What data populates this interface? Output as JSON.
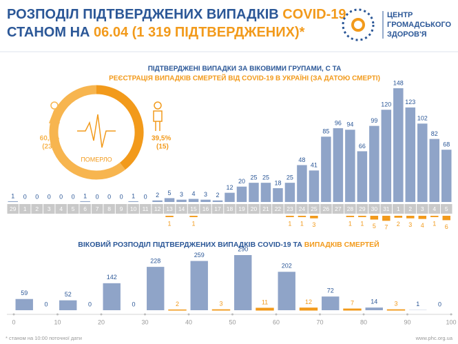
{
  "header": {
    "title_parts": [
      "РОЗПОДІЛ ПІДТВЕРДЖЕНИХ ВИПАДКІВ ",
      "COVID-19"
    ],
    "subtitle_parts": [
      "СТАНОМ НА ",
      "06.04 (1 319 ПІДТВЕРДЖЕНИХ)*"
    ],
    "logo_lines": [
      "ЦЕНТР",
      "ГРОМАДСЬКОГО",
      "ЗДОРОВ'Я"
    ]
  },
  "chart_data": [
    {
      "type": "pie",
      "center_label": "ПОМЕРЛО",
      "values": [
        60.5,
        39.5
      ],
      "value_labels": [
        "60,5%",
        "39,5%"
      ],
      "counts": [
        23,
        15
      ],
      "count_labels": [
        "(23)",
        "(15)"
      ],
      "colors": [
        "#f7b54f",
        "#f29a1b"
      ]
    },
    {
      "type": "bar",
      "title_lines": [
        "ПІДТВЕРДЖЕНІ ВИПАДКИ ЗА ВІКОВИМИ ГРУПАМИ, С ТА",
        "РЕЄСТРАЦІЯ ВИПАДКІВ СМЕРТЕЙ ВІД COVID-19 В УКРАЇНІ (ЗА ДАТОЮ СМЕРТІ)"
      ],
      "categories": [
        "29",
        "1",
        "2",
        "3",
        "4",
        "5",
        "6",
        "7",
        "8",
        "9",
        "10",
        "11",
        "12",
        "13",
        "14",
        "15",
        "16",
        "17",
        "18",
        "19",
        "20",
        "21",
        "22",
        "23",
        "24",
        "25",
        "26",
        "27",
        "28",
        "29",
        "30",
        "31",
        "1",
        "2",
        "3",
        "4",
        "5"
      ],
      "values": [
        1,
        0,
        0,
        0,
        0,
        0,
        1,
        0,
        0,
        0,
        1,
        0,
        2,
        5,
        3,
        4,
        3,
        2,
        12,
        20,
        25,
        25,
        18,
        25,
        48,
        41,
        85,
        96,
        94,
        66,
        99,
        120,
        148,
        123,
        102,
        82,
        68
      ],
      "deaths": [
        null,
        null,
        null,
        null,
        null,
        null,
        null,
        null,
        null,
        null,
        null,
        null,
        null,
        1,
        null,
        1,
        null,
        null,
        null,
        null,
        null,
        null,
        null,
        1,
        1,
        3,
        null,
        null,
        1,
        1,
        5,
        7,
        2,
        3,
        4,
        1,
        6
      ],
      "color": "#8fa4c8",
      "death_color": "#f29a1b"
    },
    {
      "type": "histogram",
      "title_parts": [
        "ВІКОВИЙ РОЗПОДІЛ ПІДТВЕРДЖЕНИХ ВИПАДКІВ COVID-19 ТА ",
        "ВИПАДКІВ СМЕРТЕЙ"
      ],
      "bins": [
        0,
        10,
        20,
        30,
        40,
        50,
        60,
        70,
        80,
        90,
        100
      ],
      "values": [
        59,
        52,
        142,
        228,
        259,
        290,
        202,
        72,
        14,
        1
      ],
      "deaths": [
        0,
        0,
        0,
        2,
        3,
        11,
        12,
        7,
        3,
        0
      ],
      "xlim": [
        0,
        100
      ],
      "xticks": [
        0,
        10,
        20,
        30,
        40,
        50,
        60,
        70,
        80,
        90,
        100
      ],
      "color": "#8fa4c8",
      "death_color": "#f29a1b"
    }
  ],
  "footer": {
    "note": "* станом на 10:00 поточної дати",
    "url": "www.phc.org.ua"
  }
}
